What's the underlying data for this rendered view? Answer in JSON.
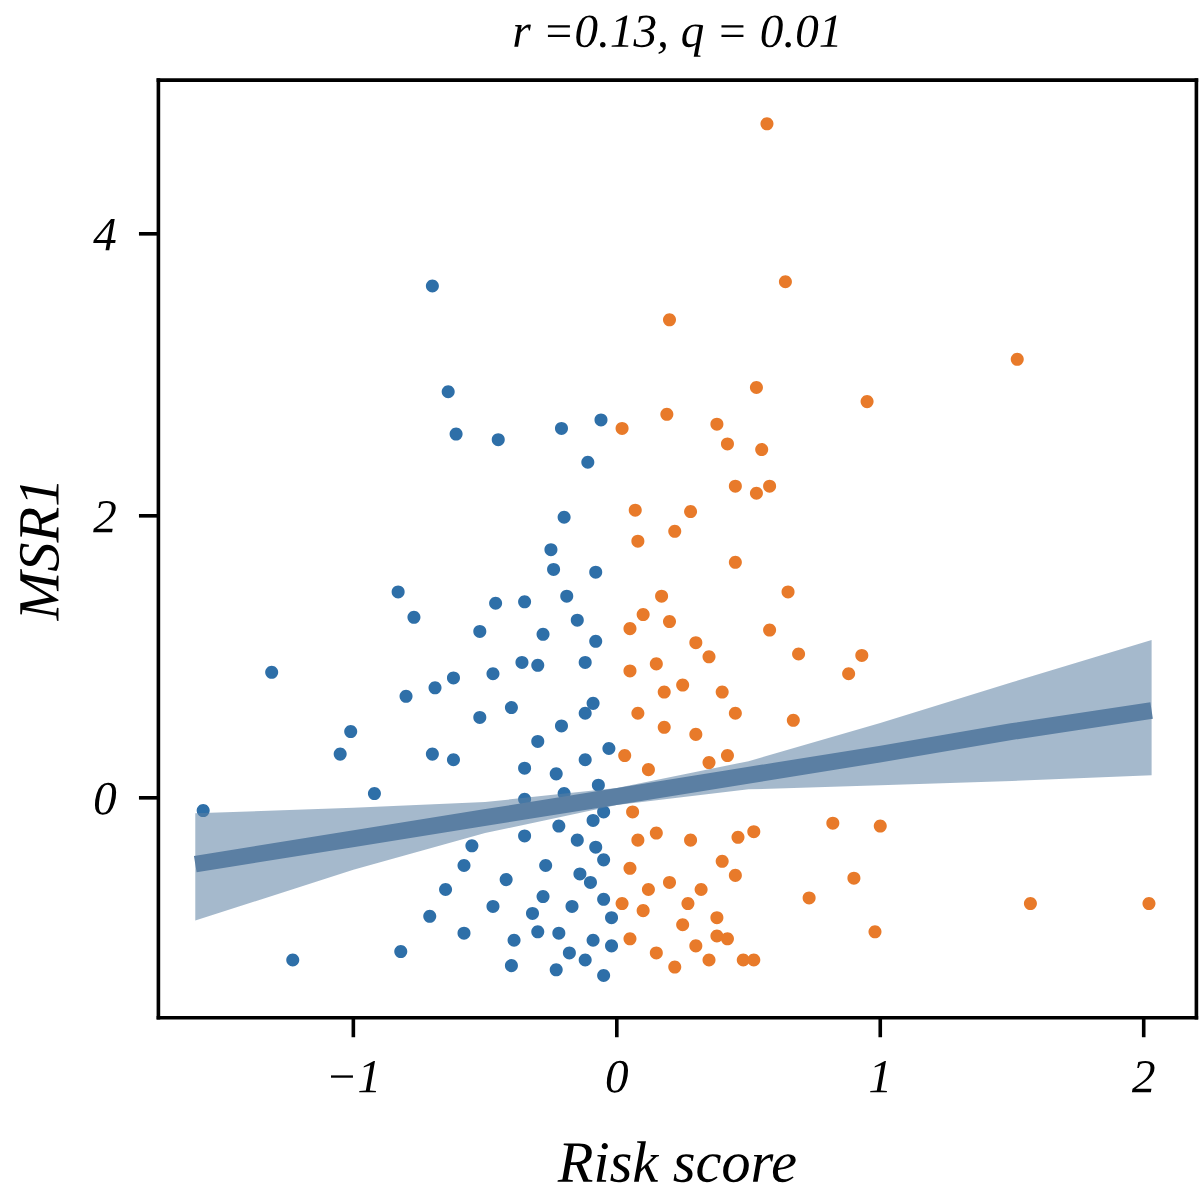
{
  "chart_data": {
    "type": "scatter",
    "title": "r =0.13, q = 0.01",
    "xlabel": "Risk score",
    "ylabel": "MSR1",
    "xlim": [
      -1.74,
      2.2
    ],
    "ylim": [
      -1.56,
      5.09
    ],
    "xticks": [
      {
        "value": -1,
        "label": "−1"
      },
      0,
      1,
      2
    ],
    "yticks": [
      0,
      2,
      4
    ],
    "grid": false,
    "legend": false,
    "marker": "circle",
    "series": [
      {
        "color": "#2e6fa8",
        "x": [
          -0.7,
          -0.64,
          -0.61,
          -0.45,
          -0.21,
          -0.06,
          -0.11,
          -0.2,
          -0.25,
          -0.24,
          -0.08,
          -0.83,
          -0.77,
          -0.46,
          -0.35,
          -0.19,
          -0.52,
          -0.15,
          -0.28,
          -0.08,
          -1.31,
          -0.8,
          -0.69,
          -0.62,
          -0.47,
          -0.36,
          -0.3,
          -0.12,
          -0.52,
          -0.4,
          -0.3,
          -0.21,
          -0.09,
          -1.01,
          -1.05,
          -0.7,
          -0.62,
          -0.92,
          -0.35,
          -0.23,
          -0.12,
          -1.57,
          -0.35,
          -0.2,
          -0.07,
          -0.55,
          -0.35,
          -0.22,
          -0.09,
          -0.58,
          -0.65,
          -0.42,
          -0.27,
          -0.14,
          -0.05,
          -0.71,
          -0.47,
          -0.32,
          -0.17,
          -0.05,
          -0.58,
          -0.39,
          -0.22,
          -0.09,
          -1.23,
          -0.82,
          -0.4,
          -0.23,
          -0.05,
          -0.12,
          -0.15,
          -0.05,
          -0.1,
          -0.02,
          -0.18,
          -0.28,
          -0.03,
          -0.12,
          -0.08,
          -0.02,
          -0.3
        ],
        "values": [
          3.63,
          2.88,
          2.58,
          2.54,
          2.62,
          2.68,
          2.38,
          1.99,
          1.76,
          1.62,
          1.6,
          1.46,
          1.28,
          1.38,
          1.39,
          1.43,
          1.18,
          1.26,
          1.16,
          1.11,
          0.89,
          0.72,
          0.78,
          0.85,
          0.88,
          0.96,
          0.94,
          0.96,
          0.57,
          0.64,
          0.4,
          0.51,
          0.67,
          0.47,
          0.31,
          0.31,
          0.27,
          0.03,
          0.21,
          0.17,
          0.27,
          -0.09,
          -0.01,
          0.03,
          0.09,
          -0.34,
          -0.27,
          -0.2,
          -0.16,
          -0.48,
          -0.65,
          -0.58,
          -0.48,
          -0.54,
          -0.44,
          -0.84,
          -0.77,
          -0.82,
          -0.77,
          -0.72,
          -0.96,
          -1.01,
          -0.96,
          -1.01,
          -1.15,
          -1.09,
          -1.19,
          -1.22,
          -1.26,
          -1.15,
          -0.3,
          -0.1,
          -0.6,
          -0.85,
          -1.1,
          -0.7,
          0.35,
          0.6,
          -0.35,
          -1.05,
          -0.95
        ]
      },
      {
        "color": "#e87a2a",
        "x": [
          0.57,
          0.64,
          0.2,
          1.52,
          0.53,
          0.95,
          0.19,
          0.02,
          0.38,
          0.42,
          0.55,
          0.45,
          0.58,
          0.53,
          0.07,
          0.28,
          0.22,
          0.08,
          0.45,
          0.65,
          0.17,
          0.58,
          0.93,
          0.88,
          0.69,
          0.67,
          0.82,
          1.0,
          0.9,
          0.73,
          0.98,
          1.57,
          2.02,
          0.52,
          0.46,
          0.38,
          0.48,
          0.52,
          0.05,
          0.1,
          0.2,
          0.3,
          0.35,
          0.05,
          0.15,
          0.25,
          0.4,
          0.45,
          0.08,
          0.18,
          0.3,
          0.42,
          0.03,
          0.12,
          0.35,
          0.06,
          0.15,
          0.28,
          0.4,
          0.05,
          0.2,
          0.32,
          0.45,
          0.1,
          0.25,
          0.38,
          0.05,
          0.15,
          0.3,
          0.42,
          0.08,
          0.18,
          0.12,
          0.27,
          0.02,
          0.35,
          0.22
        ],
        "values": [
          4.78,
          3.66,
          3.39,
          3.11,
          2.91,
          2.81,
          2.72,
          2.62,
          2.65,
          2.51,
          2.47,
          2.21,
          2.21,
          2.16,
          2.04,
          2.03,
          1.89,
          1.82,
          1.67,
          1.46,
          1.43,
          1.19,
          1.01,
          0.88,
          1.02,
          0.55,
          -0.18,
          -0.2,
          -0.57,
          -0.71,
          -0.95,
          -0.75,
          -0.75,
          -0.24,
          -0.28,
          -0.98,
          -1.15,
          -1.15,
          1.2,
          1.3,
          1.25,
          1.1,
          1.0,
          0.9,
          0.95,
          0.8,
          0.75,
          0.6,
          0.6,
          0.5,
          0.45,
          0.3,
          0.3,
          0.2,
          0.25,
          -0.1,
          -0.25,
          -0.3,
          -0.45,
          -0.5,
          -0.6,
          -0.65,
          -0.55,
          -0.8,
          -0.9,
          -0.85,
          -1.0,
          -1.1,
          -1.05,
          -1.0,
          -0.3,
          0.75,
          -0.65,
          -0.75,
          -0.75,
          -1.15,
          -1.2
        ]
      },
      {
        "type": "line",
        "marker": "none",
        "color": "#5b7fa3",
        "x": [
          -1.6,
          -1,
          -0.5,
          0,
          0.5,
          1,
          1.5,
          2.03
        ],
        "values": [
          -0.47,
          -0.29,
          -0.14,
          0.01,
          0.16,
          0.31,
          0.47,
          0.62
        ],
        "lower": [
          -0.87,
          -0.51,
          -0.25,
          -0.05,
          0.06,
          0.09,
          0.12,
          0.16
        ],
        "upper": [
          -0.11,
          -0.07,
          -0.03,
          0.07,
          0.26,
          0.53,
          0.82,
          1.12
        ]
      }
    ]
  }
}
